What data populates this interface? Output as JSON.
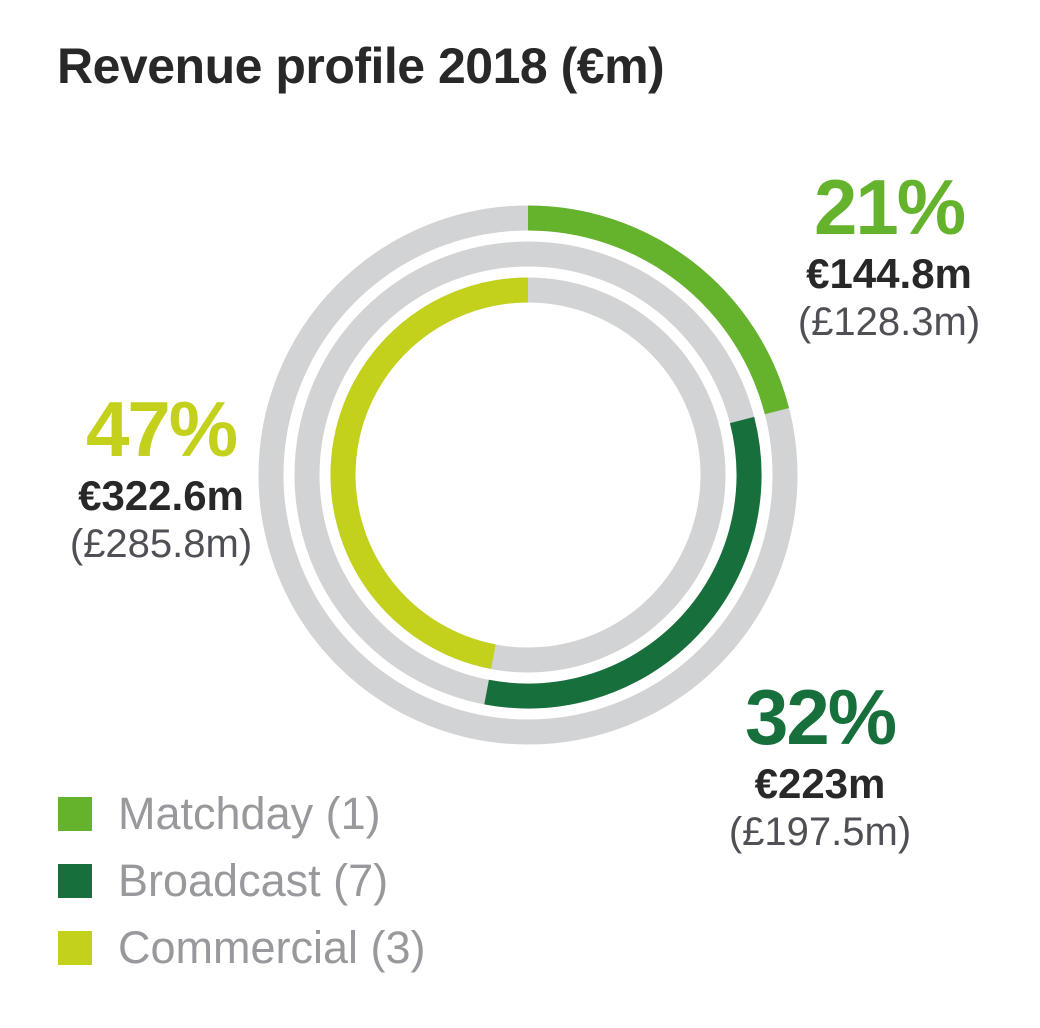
{
  "title": "Revenue profile 2018 (€m)",
  "colors": {
    "matchday_green": "#65b22d",
    "broadcast_green": "#17703c",
    "commercial_lime": "#c3d11c",
    "ring_track_gray": "#d2d3d4",
    "title_text": "#282828",
    "eur_text": "#282828",
    "gbp_text": "#4f5055",
    "legend_text": "#97999c"
  },
  "chart_data": {
    "type": "pie",
    "subtype": "multi-ring-donut",
    "title": "Revenue profile 2018 (€m)",
    "unit": "€m",
    "direction": "clockwise",
    "start_angle_deg": 0,
    "track_color": "#d2d3d4",
    "ring_stroke_width": 25,
    "segments": [
      {
        "label": "Matchday (1)",
        "percent": 21,
        "value_eur_m": 144.8,
        "value_gbp_m": 128.3,
        "eur_label": "€144.8m",
        "gbp_label": "(£128.3m)",
        "color": "#65b22d",
        "ring_radius": 257
      },
      {
        "label": "Broadcast (7)",
        "percent": 32,
        "value_eur_m": 223,
        "value_gbp_m": 197.5,
        "eur_label": "€223m",
        "gbp_label": "(£197.5m)",
        "color": "#17703c",
        "ring_radius": 221
      },
      {
        "label": "Commercial (3)",
        "percent": 47,
        "value_eur_m": 322.6,
        "value_gbp_m": 285.8,
        "eur_label": "€322.6m",
        "gbp_label": "(£285.8m)",
        "color": "#c3d11c",
        "ring_radius": 185
      }
    ],
    "legend_position": "bottom-left"
  },
  "callouts": {
    "matchday": {
      "percent": "21%",
      "eur": "€144.8m",
      "gbp": "(£128.3m)"
    },
    "broadcast": {
      "percent": "32%",
      "eur": "€223m",
      "gbp": "(£197.5m)"
    },
    "commercial": {
      "percent": "47%",
      "eur": "€322.6m",
      "gbp": "(£285.8m)"
    }
  },
  "legend": {
    "items": [
      {
        "label": "Matchday (1)",
        "color": "#65b22d"
      },
      {
        "label": "Broadcast (7)",
        "color": "#17703c"
      },
      {
        "label": "Commercial (3)",
        "color": "#c3d11c"
      }
    ]
  }
}
